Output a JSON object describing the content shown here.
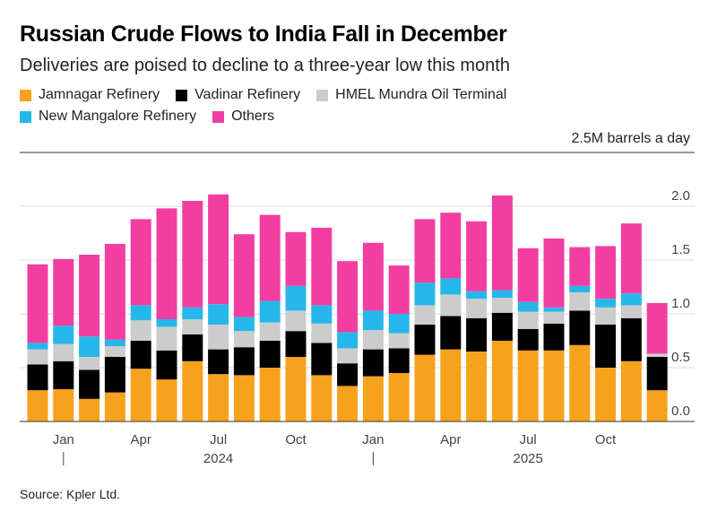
{
  "title": "Russian Crude Flows to India Fall in December",
  "subtitle": "Deliveries are poised to decline to a three-year low this month",
  "source": "Source: Kpler Ltd.",
  "legend": [
    {
      "name": "Jamnagar Refinery",
      "color": "#f7a21c"
    },
    {
      "name": "Vadinar Refinery",
      "color": "#000000"
    },
    {
      "name": "HMEL Mundra Oil Terminal",
      "color": "#cccccc"
    },
    {
      "name": "New Mangalore Refinery",
      "color": "#26b7ea"
    },
    {
      "name": "Others",
      "color": "#f23ea2"
    }
  ],
  "chart_data": {
    "type": "bar",
    "stacked": true,
    "unit_label": "2.5M barrels a day",
    "ylim": [
      0,
      2.5
    ],
    "yticks": [
      "2.0",
      "1.5",
      "1.0",
      "0.5",
      "0.0"
    ],
    "ytick_values": [
      2.0,
      1.5,
      1.0,
      0.5,
      0.0
    ],
    "categories": [
      "Dec 2023",
      "Jan 2024",
      "Feb 2024",
      "Mar 2024",
      "Apr 2024",
      "May 2024",
      "Jun 2024",
      "Jul 2024",
      "Aug 2024",
      "Sep 2024",
      "Oct 2024",
      "Nov 2024",
      "Dec 2024",
      "Jan 2025",
      "Feb 2025",
      "Mar 2025",
      "Apr 2025",
      "May 2025",
      "Jun 2025",
      "Jul 2025",
      "Aug 2025",
      "Sep 2025",
      "Oct 2025",
      "Nov 2025",
      "Dec 2025"
    ],
    "x_tick_labels": [
      {
        "index": 1,
        "label": "Jan"
      },
      {
        "index": 4,
        "label": "Apr"
      },
      {
        "index": 7,
        "label": "Jul"
      },
      {
        "index": 10,
        "label": "Oct"
      },
      {
        "index": 13,
        "label": "Jan"
      },
      {
        "index": 16,
        "label": "Apr"
      },
      {
        "index": 19,
        "label": "Jul"
      },
      {
        "index": 22,
        "label": "Oct"
      }
    ],
    "year_labels": [
      {
        "index": 7,
        "label": "2024"
      },
      {
        "index": 19,
        "label": "2025"
      }
    ],
    "year_dividers": [
      1,
      13
    ],
    "series": [
      {
        "name": "Jamnagar Refinery",
        "color": "#f7a21c",
        "values": [
          0.29,
          0.3,
          0.21,
          0.27,
          0.49,
          0.39,
          0.56,
          0.44,
          0.43,
          0.5,
          0.6,
          0.43,
          0.33,
          0.42,
          0.45,
          0.62,
          0.67,
          0.65,
          0.75,
          0.66,
          0.66,
          0.71,
          0.5,
          0.56,
          0.29
        ]
      },
      {
        "name": "Vadinar Refinery",
        "color": "#000000",
        "values": [
          0.24,
          0.26,
          0.27,
          0.33,
          0.26,
          0.27,
          0.25,
          0.23,
          0.26,
          0.25,
          0.24,
          0.3,
          0.21,
          0.25,
          0.23,
          0.28,
          0.31,
          0.31,
          0.26,
          0.2,
          0.25,
          0.32,
          0.4,
          0.4,
          0.31
        ]
      },
      {
        "name": "HMEL Mundra Oil Terminal",
        "color": "#cccccc",
        "values": [
          0.14,
          0.16,
          0.12,
          0.1,
          0.19,
          0.22,
          0.14,
          0.23,
          0.15,
          0.17,
          0.19,
          0.18,
          0.14,
          0.18,
          0.14,
          0.18,
          0.2,
          0.18,
          0.14,
          0.16,
          0.11,
          0.17,
          0.16,
          0.12,
          0.03
        ]
      },
      {
        "name": "New Mangalore Refinery",
        "color": "#26b7ea",
        "values": [
          0.06,
          0.17,
          0.19,
          0.06,
          0.14,
          0.07,
          0.11,
          0.19,
          0.13,
          0.2,
          0.23,
          0.17,
          0.15,
          0.18,
          0.18,
          0.21,
          0.15,
          0.07,
          0.07,
          0.09,
          0.04,
          0.06,
          0.08,
          0.11,
          0.0
        ]
      },
      {
        "name": "Others",
        "color": "#f23ea2",
        "values": [
          0.73,
          0.62,
          0.76,
          0.89,
          0.8,
          1.03,
          0.99,
          1.02,
          0.77,
          0.8,
          0.5,
          0.72,
          0.66,
          0.63,
          0.45,
          0.59,
          0.61,
          0.65,
          0.88,
          0.5,
          0.64,
          0.36,
          0.49,
          0.65,
          0.47
        ]
      }
    ]
  }
}
